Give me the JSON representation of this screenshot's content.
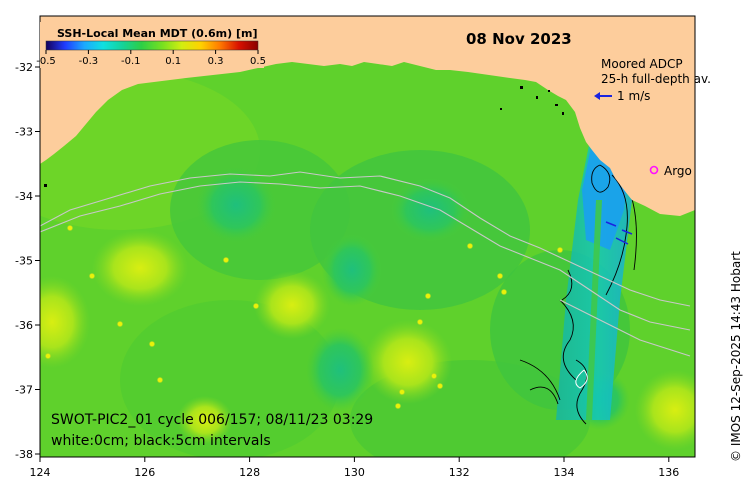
{
  "map": {
    "date": "08 Nov 2023",
    "colorbar": {
      "title": "SSH-Local Mean MDT (0.6m) [m]",
      "ticks": [
        "-0.5",
        "-0.3",
        "-0.1",
        "0.1",
        "0.3",
        "0.5"
      ],
      "min": -0.5,
      "max": 0.5,
      "colors": [
        "#14005a",
        "#1f3cff",
        "#1ca8ff",
        "#10e0e0",
        "#14d39a",
        "#2ccf46",
        "#78e020",
        "#d2ee10",
        "#ffd200",
        "#ff7a00",
        "#d81000",
        "#8a0000"
      ]
    },
    "legend": {
      "adcp_title": "Moored ADCP",
      "adcp_subtitle": "25-h full-depth av.",
      "adcp_scale": "1 m/s",
      "argo_label": "Argo"
    },
    "annotation_line1": "SWOT-PIC2_01 cycle 006/157; 08/11/23 03:29",
    "annotation_line2": "white:0cm; black:5cm intervals",
    "credit": "© IMOS 12-Sep-2025 14:43 Hobart",
    "x_ticks": [
      "124",
      "126",
      "128",
      "130",
      "132",
      "134",
      "136"
    ],
    "y_ticks": [
      "-32",
      "-33",
      "-34",
      "-35",
      "-36",
      "-37",
      "-38"
    ],
    "colors": {
      "land": "#fdcd9c",
      "ocean_base": "#5fd12c",
      "adcp_arrow": "#1a23e0",
      "argo": "#ff10ff"
    }
  }
}
